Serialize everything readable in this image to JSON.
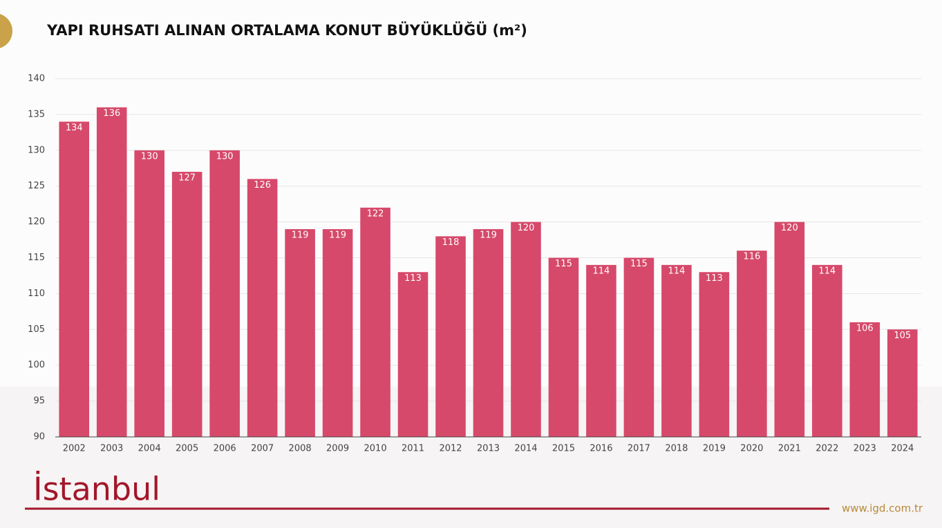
{
  "chart_data": {
    "type": "bar",
    "title": "YAPI RUHSATI ALINAN ORTALAMA KONUT BÜYÜKLÜĞÜ (m²)",
    "categories": [
      "2002",
      "2003",
      "2004",
      "2005",
      "2006",
      "2007",
      "2008",
      "2009",
      "2010",
      "2011",
      "2012",
      "2013",
      "2014",
      "2015",
      "2016",
      "2017",
      "2018",
      "2019",
      "2020",
      "2021",
      "2022",
      "2023",
      "2024"
    ],
    "values": [
      134,
      136,
      130,
      127,
      130,
      126,
      119,
      119,
      122,
      113,
      118,
      119,
      120,
      115,
      114,
      115,
      114,
      113,
      116,
      120,
      114,
      106,
      105
    ],
    "color": "#d6496a",
    "ylim": [
      90,
      140
    ],
    "yticks": [
      90,
      95,
      100,
      105,
      110,
      115,
      120,
      125,
      130,
      135,
      140
    ],
    "grid": true
  },
  "footer": {
    "logo": "İstanbul",
    "website": "www.igd.com.tr"
  }
}
